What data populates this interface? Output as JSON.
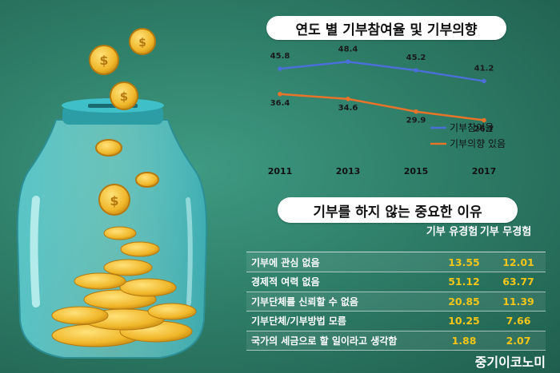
{
  "header1": "연도 별 기부참여율 및 기부의향",
  "header2": "기부를 하지 않는 중요한 이유",
  "watermark": "중기이코노미",
  "colors": {
    "participation": "#4a6fd8",
    "intent": "#e8732a",
    "value": "#f5c518",
    "background": "#2f7f69"
  },
  "chart_data": [
    {
      "type": "line",
      "title": "연도 별 기부참여율 및 기부의향",
      "categories": [
        "2011",
        "2013",
        "2015",
        "2017"
      ],
      "series": [
        {
          "name": "기부참여율",
          "values": [
            45.8,
            48.4,
            45.2,
            41.2
          ]
        },
        {
          "name": "기부의향 있음",
          "values": [
            36.4,
            34.6,
            29.9,
            26.7
          ]
        }
      ],
      "ylim": [
        15,
        55
      ],
      "legend": "right",
      "grid": false
    },
    {
      "type": "table",
      "title": "기부를 하지 않는 중요한 이유",
      "columns": [
        "기부 유경험",
        "기부 무경험"
      ],
      "rows": [
        {
          "label": "기부에 관심 없음",
          "values": [
            "13.55",
            "12.01"
          ]
        },
        {
          "label": "경제적 여력 없음",
          "values": [
            "51.12",
            "63.77"
          ]
        },
        {
          "label": "기부단체를 신뢰할 수 없음",
          "values": [
            "20.85",
            "11.39"
          ]
        },
        {
          "label": "기부단체/기부방법 모름",
          "values": [
            "10.25",
            "7.66"
          ]
        },
        {
          "label": "국가의 세금으로 할 일이라고 생각함",
          "values": [
            "1.88",
            "2.07"
          ]
        }
      ]
    }
  ]
}
